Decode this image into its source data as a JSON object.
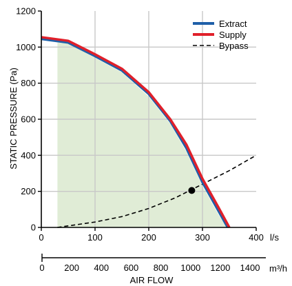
{
  "chart_data": {
    "type": "line",
    "ylabel": "STATIC PRESSURE (Pa)",
    "xlabel": "AIR FLOW",
    "x_unit_ls": "l/s",
    "x_unit_m3h": "m³/h",
    "xlim": [
      0,
      400
    ],
    "ylim": [
      0,
      1200
    ],
    "x_ticks": [
      "0",
      "100",
      "200",
      "300",
      "400"
    ],
    "y_ticks": [
      "0",
      "200",
      "400",
      "600",
      "800",
      "1000",
      "1200"
    ],
    "x2_ticks": [
      "0",
      "200",
      "400",
      "600",
      "800",
      "1000",
      "1200",
      "1400"
    ],
    "grid": true,
    "legend_position": "top-right",
    "series": [
      {
        "name": "Extract",
        "color": "#1f5fa8",
        "style": "solid",
        "x": [
          0,
          50,
          100,
          150,
          200,
          240,
          270,
          300,
          330,
          347
        ],
        "y": [
          1045,
          1025,
          950,
          870,
          740,
          590,
          440,
          250,
          90,
          0
        ]
      },
      {
        "name": "Supply",
        "color": "#e0202a",
        "style": "solid",
        "x": [
          0,
          50,
          100,
          150,
          200,
          240,
          270,
          300,
          330,
          350
        ],
        "y": [
          1055,
          1035,
          960,
          880,
          750,
          600,
          460,
          270,
          110,
          0
        ]
      },
      {
        "name": "Bypass",
        "color": "#000000",
        "style": "dashed",
        "x": [
          30,
          100,
          150,
          200,
          250,
          300,
          350,
          400
        ],
        "y": [
          0,
          30,
          60,
          105,
          165,
          240,
          315,
          400
        ]
      }
    ],
    "operating_point": {
      "x": 280,
      "y": 205
    },
    "working_area": {
      "color": "#e0ecd6",
      "x": [
        30,
        50,
        100,
        150,
        200,
        240,
        270,
        300,
        330,
        345
      ],
      "y": [
        1025,
        1020,
        940,
        860,
        725,
        575,
        420,
        230,
        70,
        0
      ]
    }
  }
}
